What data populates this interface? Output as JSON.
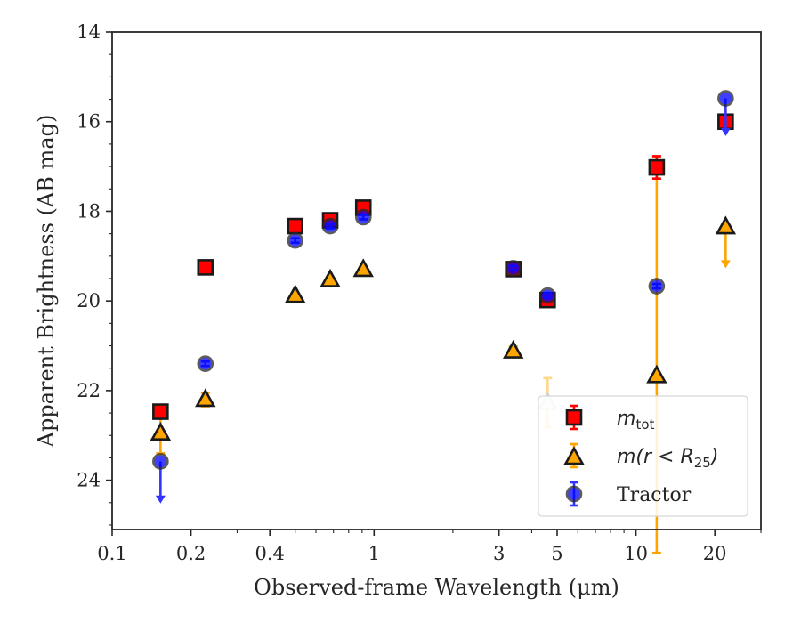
{
  "chart_data": {
    "type": "scatter",
    "title": "",
    "xlabel": "Observed-frame Wavelength (μm)",
    "ylabel": "Apparent Brightness (AB mag)",
    "xscale": "log",
    "xlim": [
      0.1,
      30
    ],
    "ylim": [
      25.1,
      14
    ],
    "y_inverted": true,
    "grid": false,
    "legend_position": "bottom-right",
    "x_ticks": [
      {
        "value": 0.1,
        "label": "0.1"
      },
      {
        "value": 0.2,
        "label": "0.2"
      },
      {
        "value": 0.4,
        "label": "0.4"
      },
      {
        "value": 1,
        "label": "1"
      },
      {
        "value": 3,
        "label": "3"
      },
      {
        "value": 5,
        "label": "5"
      },
      {
        "value": 10,
        "label": "10"
      },
      {
        "value": 20,
        "label": "20"
      }
    ],
    "y_ticks": [
      {
        "value": 14,
        "label": "14"
      },
      {
        "value": 16,
        "label": "16"
      },
      {
        "value": 18,
        "label": "18"
      },
      {
        "value": 20,
        "label": "20"
      },
      {
        "value": 22,
        "label": "22"
      },
      {
        "value": 24,
        "label": "24"
      }
    ],
    "series": [
      {
        "name": "m_tot",
        "legend_label": {
          "main": "m",
          "sub": "tot",
          "rest": ""
        },
        "marker": "square",
        "color": "#ff0000",
        "errcolor": "#ff0000",
        "points": [
          {
            "x": 0.153,
            "y": 22.47,
            "err": 0.05
          },
          {
            "x": 0.227,
            "y": 19.25,
            "err": 0.05
          },
          {
            "x": 0.5,
            "y": 18.33,
            "err": 0.05
          },
          {
            "x": 0.68,
            "y": 18.2,
            "err": 0.05
          },
          {
            "x": 0.91,
            "y": 17.92,
            "err": 0.05
          },
          {
            "x": 3.4,
            "y": 19.29,
            "err": 0.05
          },
          {
            "x": 4.6,
            "y": 19.98,
            "err": 0.05
          },
          {
            "x": 12.0,
            "y": 17.02,
            "err": 0.25
          },
          {
            "x": 22.0,
            "y": 16.0,
            "err": 0.05
          }
        ]
      },
      {
        "name": "m(r<R25)",
        "legend_label": {
          "main": "m(r < R",
          "sub": "25",
          "rest": ")"
        },
        "marker": "triangle",
        "color": "#ffa500",
        "errcolor": "#ffa500",
        "points": [
          {
            "x": 0.153,
            "y": 22.95,
            "err": 0.45
          },
          {
            "x": 0.227,
            "y": 22.2,
            "err": 0.15
          },
          {
            "x": 0.5,
            "y": 19.88,
            "err": 0.05
          },
          {
            "x": 0.68,
            "y": 19.53,
            "err": 0.05
          },
          {
            "x": 0.91,
            "y": 19.3,
            "err": 0.05
          },
          {
            "x": 3.4,
            "y": 21.12,
            "err": 0.1
          },
          {
            "x": 4.6,
            "y": 22.27,
            "err": 0.55,
            "hidden": true
          },
          {
            "x": 12.0,
            "y": 21.67,
            "err": 4.9,
            "errlow": 3.95
          },
          {
            "x": 22.0,
            "y": 18.35,
            "upper_limit": true,
            "arrow_to": 19.25
          }
        ]
      },
      {
        "name": "Tractor",
        "legend_label": {
          "main": "Tractor",
          "sub": "",
          "rest": ""
        },
        "marker": "circle",
        "color": "#0000ff",
        "errcolor": "#3333ff",
        "points": [
          {
            "x": 0.153,
            "y": 23.58,
            "upper_limit": true,
            "arrow_to": 24.5
          },
          {
            "x": 0.227,
            "y": 21.4,
            "err": 0.05
          },
          {
            "x": 0.5,
            "y": 18.65,
            "err": 0.05
          },
          {
            "x": 0.68,
            "y": 18.33,
            "err": 0.05
          },
          {
            "x": 0.91,
            "y": 18.13,
            "err": 0.05
          },
          {
            "x": 3.4,
            "y": 19.27,
            "err": 0.05
          },
          {
            "x": 4.6,
            "y": 19.88,
            "err": 0.05
          },
          {
            "x": 12.0,
            "y": 19.67,
            "err": 0.05
          },
          {
            "x": 22.0,
            "y": 15.48,
            "upper_limit": true,
            "arrow_to": 16.3
          }
        ]
      }
    ]
  }
}
